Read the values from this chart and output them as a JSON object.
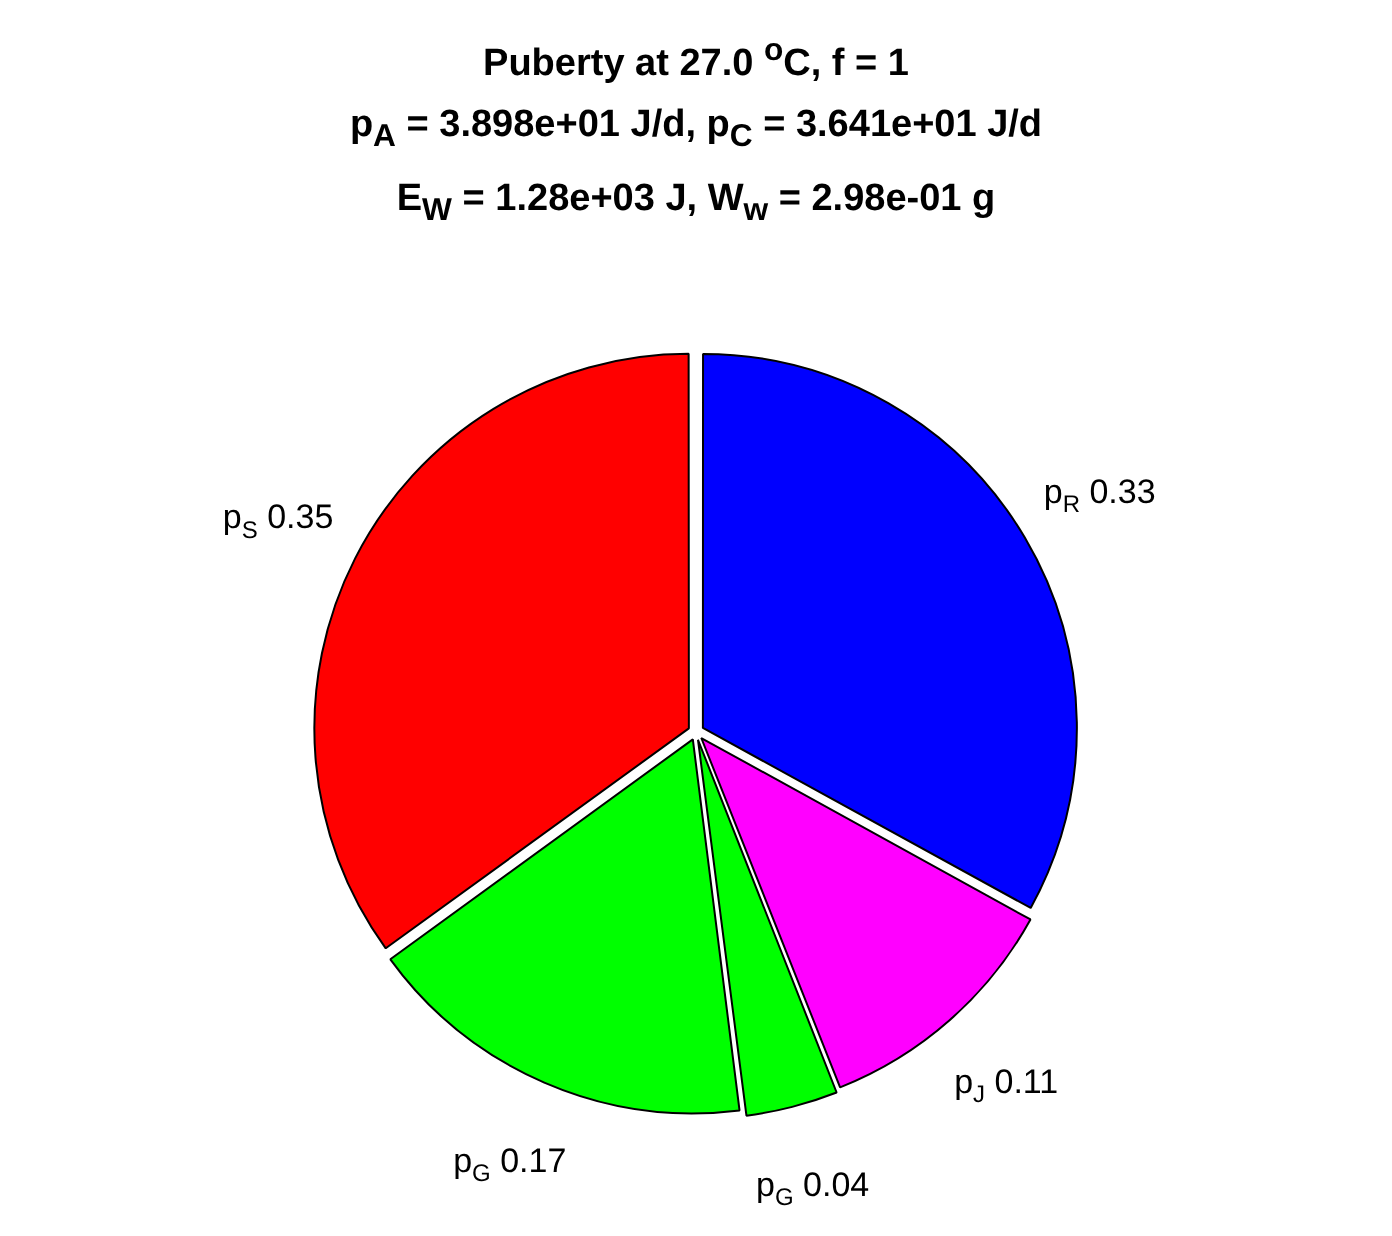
{
  "chart_data": {
    "type": "pie",
    "title": "Puberty at 27.0 $^{o}$C, f = 1",
    "subtitle": "p$_{A}$ = 3.898e+01 J/d,  p$_{C}$ = 3.641e+01 J/d\nE$_{W}$ = 1.28e+03 J, W$_{w}$ = 2.98e-01 g",
    "categories": [
      "p$_{R}$",
      "p$_{J}$",
      "p$_{G}$",
      "p$_{G}$",
      "p$_{S}$"
    ],
    "values": [
      0.33,
      0.11,
      0.04,
      0.17,
      0.35
    ],
    "colors": [
      "#0000ff",
      "#ff00ff",
      "#00ff00",
      "#00ff00",
      "#ff0000"
    ],
    "data_labels": true,
    "legend": false
  }
}
